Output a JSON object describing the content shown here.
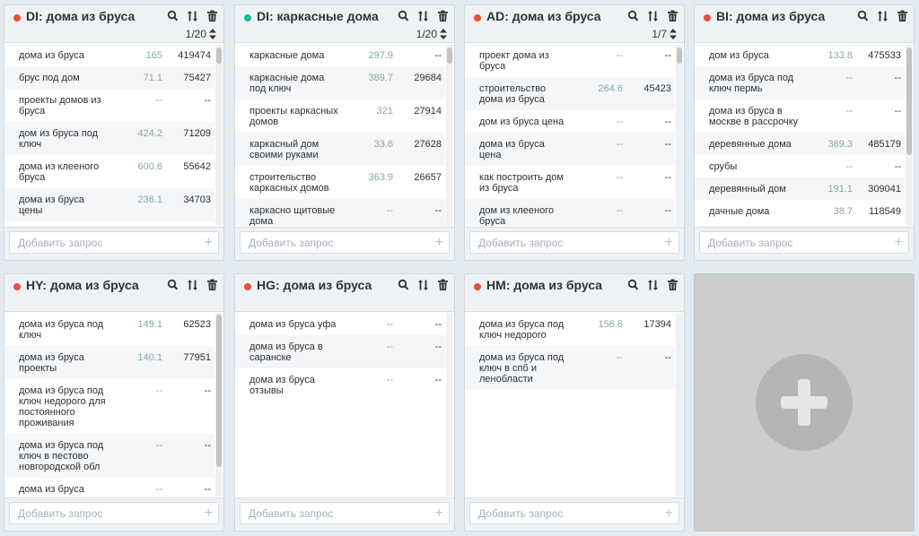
{
  "colors": {
    "dot_red": "#e5503f",
    "dot_green": "#1fb89a",
    "number_muted": "#8aa5a8"
  },
  "icons": {
    "tools": [
      "search-icon",
      "sort-icon",
      "trash-icon"
    ],
    "pager": "sort-arrows-icon",
    "add": "plus-icon",
    "new_panel": "big-plus-icon"
  },
  "add_placeholder": "Добавить запрос",
  "panels": [
    {
      "title": "DI: дома из бруса",
      "dot": "red",
      "pager": "1/20",
      "rows": [
        {
          "q": "дома из бруса",
          "n1": "165",
          "n2": "419474"
        },
        {
          "q": "брус под дом",
          "n1": "71.1",
          "n2": "75427"
        },
        {
          "q": "проекты домов из бруса",
          "n1": "--",
          "n2": "--"
        },
        {
          "q": "дом из бруса под ключ",
          "n1": "424.2",
          "n2": "71209"
        },
        {
          "q": "дома из клееного бруса",
          "n1": "600.6",
          "n2": "55642"
        },
        {
          "q": "дома из бруса цены",
          "n1": "236.1",
          "n2": "34703"
        }
      ]
    },
    {
      "title": "DI: каркасные дома",
      "dot": "green",
      "pager": "1/20",
      "rows": [
        {
          "q": "каркасные дома",
          "n1": "297.9",
          "n2": "--"
        },
        {
          "q": "каркасные дома под ключ",
          "n1": "389.7",
          "n2": "29684"
        },
        {
          "q": "проекты каркасных домов",
          "n1": "321",
          "n2": "27914"
        },
        {
          "q": "каркасный дом своими руками",
          "n1": "33.6",
          "n2": "27628"
        },
        {
          "q": "строительство каркасных домов",
          "n1": "363.9",
          "n2": "26657"
        },
        {
          "q": "каркасно щитовые дома",
          "n1": "--",
          "n2": "--"
        }
      ]
    },
    {
      "title": "AD: дома из бруса",
      "dot": "red",
      "pager": "1/7",
      "rows": [
        {
          "q": "проект дома из бруса",
          "n1": "--",
          "n2": "--"
        },
        {
          "q": "строительство дома из бруса",
          "n1": "264.6",
          "n2": "45423"
        },
        {
          "q": "дом из бруса цена",
          "n1": "--",
          "n2": "--"
        },
        {
          "q": "дома из бруса цена",
          "n1": "--",
          "n2": "--"
        },
        {
          "q": "как построить дом из бруса",
          "n1": "--",
          "n2": "--"
        },
        {
          "q": "дом из клееного бруса",
          "n1": "--",
          "n2": "--"
        }
      ]
    },
    {
      "title": "BI: дома из бруса",
      "dot": "red",
      "pager": "",
      "rows": [
        {
          "q": "дом из бруса",
          "n1": "133.8",
          "n2": "475533"
        },
        {
          "q": "дома из бруса под ключ пермь",
          "n1": "--",
          "n2": "--"
        },
        {
          "q": "дома из бруса в москве в рассрочку",
          "n1": "--",
          "n2": "--"
        },
        {
          "q": "деревянные дома",
          "n1": "369.3",
          "n2": "485179"
        },
        {
          "q": "срубы",
          "n1": "--",
          "n2": "--"
        },
        {
          "q": "деревянный дом",
          "n1": "191.1",
          "n2": "309041"
        },
        {
          "q": "дачные дома",
          "n1": "38.7",
          "n2": "118549"
        }
      ]
    },
    {
      "title": "HY: дома из бруса",
      "dot": "red",
      "pager": "",
      "rows": [
        {
          "q": "дома из бруса под ключ",
          "n1": "149.1",
          "n2": "62523"
        },
        {
          "q": "дома из бруса проекты",
          "n1": "140.1",
          "n2": "77951"
        },
        {
          "q": "дома из бруса под ключ недорого для постоянного проживания",
          "n1": "--",
          "n2": "--"
        },
        {
          "q": "дома из бруса под ключ в пестово новгородской обл",
          "n1": "--",
          "n2": "--"
        },
        {
          "q": "дома из бруса терем",
          "n1": "--",
          "n2": "--"
        }
      ]
    },
    {
      "title": "HG: дома из бруса",
      "dot": "red",
      "pager": "",
      "rows": [
        {
          "q": "дома из бруса уфа",
          "n1": "--",
          "n2": "--"
        },
        {
          "q": "дома из бруса в саранске",
          "n1": "--",
          "n2": "--"
        },
        {
          "q": "дома из бруса отзывы",
          "n1": "--",
          "n2": "--"
        }
      ]
    },
    {
      "title": "HM: дома из бруса",
      "dot": "red",
      "pager": "",
      "rows": [
        {
          "q": "дома из бруса под ключ недорого",
          "n1": "156.6",
          "n2": "17394"
        },
        {
          "q": "дома из бруса под ключ в спб и ленобласти",
          "n1": "--",
          "n2": "--"
        }
      ]
    }
  ]
}
